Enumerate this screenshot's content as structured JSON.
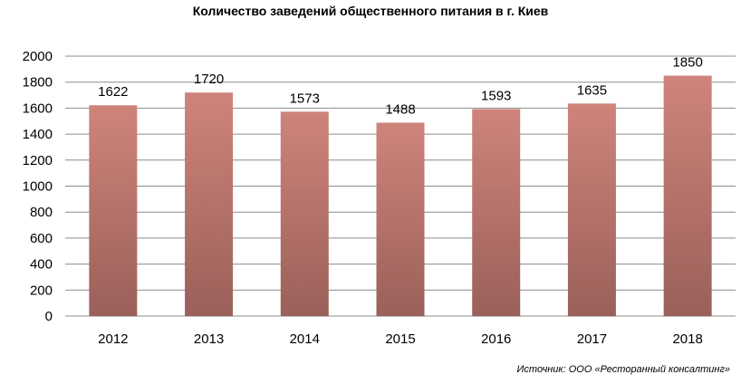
{
  "chart_data": {
    "type": "bar",
    "title": "Количество заведений общественного питания в г. Киев",
    "categories": [
      "2012",
      "2013",
      "2014",
      "2015",
      "2016",
      "2017",
      "2018"
    ],
    "values": [
      1622,
      1720,
      1573,
      1488,
      1593,
      1635,
      1850
    ],
    "data_labels": [
      "1622",
      "1720",
      "1573",
      "1488",
      "1593",
      "1635",
      "1850"
    ],
    "ylim": [
      0,
      2000
    ],
    "yticks": [
      0,
      200,
      400,
      600,
      800,
      1000,
      1200,
      1400,
      1600,
      1800,
      2000
    ],
    "ytick_labels": [
      "0",
      "200",
      "400",
      "600",
      "800",
      "1000",
      "1200",
      "1400",
      "1600",
      "1800",
      "2000"
    ],
    "xlabel": "",
    "ylabel": "",
    "grid": true,
    "legend": "none",
    "bar_color_top": "#cf847a",
    "bar_color_bottom": "#9a605a"
  },
  "source": "Источник: ООО «Ресторанный консалтинг»"
}
